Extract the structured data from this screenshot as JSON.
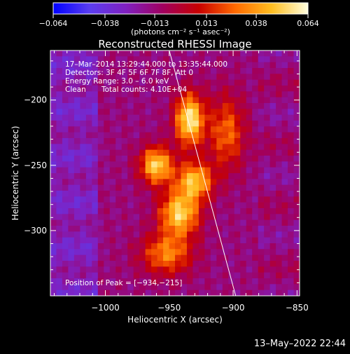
{
  "chart_data": {
    "type": "heatmap",
    "title": "Reconstructed RHESSI Image",
    "xlabel": "Heliocentric X (arcsec)",
    "ylabel": "Heliocentric Y (arcsec)",
    "xlim": [
      -1043,
      -848
    ],
    "ylim": [
      -350,
      -162
    ],
    "x_ticks": [
      -1000,
      -950,
      -900,
      -850
    ],
    "y_ticks": [
      -200,
      -250,
      -300
    ],
    "x_tick_labels": [
      "−1000",
      "−950",
      "−900",
      "−850"
    ],
    "y_tick_labels": [
      "−200",
      "−250",
      "−300"
    ],
    "colorbar": {
      "range": [
        -0.064,
        0.064
      ],
      "ticks": [
        -0.064,
        -0.038,
        -0.013,
        0.013,
        0.038,
        0.064
      ],
      "tick_labels": [
        "−0.064",
        "−0.038",
        "−0.013",
        "0.013",
        "0.038",
        "0.064"
      ],
      "unit_label": "(photons cm⁻² s⁻¹ asec⁻²)",
      "stops": [
        "#0000ff",
        "#5a3df0",
        "#8020c0",
        "#a00060",
        "#c80000",
        "#ff6a00",
        "#ffbe20",
        "#ffffe0"
      ]
    },
    "annotations": {
      "time_range": "17–Mar–2014 13:29:44.000 to 13:35:44.000",
      "detectors": "Detectors: 3F 4F 5F 6F 7F 8F, Att 0",
      "energy_range": "Energy Range: 3.0 – 6.0 keV",
      "clean_label": "Clean",
      "total_counts": "Total counts: 4.10E+04",
      "peak": "Position of Peak = [−934,−215]"
    },
    "peak_position": [
      -934,
      -215
    ],
    "sources": [
      {
        "x": -934,
        "y": -215,
        "rx": 8,
        "ry": 14,
        "intensity": 0.064
      },
      {
        "x": -960,
        "y": -250,
        "rx": 9,
        "ry": 10,
        "intensity": 0.058
      },
      {
        "x": -942,
        "y": -287,
        "rx": 11,
        "ry": 12,
        "intensity": 0.057
      },
      {
        "x": -930,
        "y": -262,
        "rx": 10,
        "ry": 10,
        "intensity": 0.052
      },
      {
        "x": -952,
        "y": -318,
        "rx": 14,
        "ry": 11,
        "intensity": 0.04
      },
      {
        "x": -905,
        "y": -225,
        "rx": 10,
        "ry": 20,
        "intensity": 0.035
      }
    ],
    "limb_line": [
      [
        -950,
        -162
      ],
      [
        -898,
        -350
      ]
    ],
    "footer_date": "13–May–2022 22:44"
  }
}
